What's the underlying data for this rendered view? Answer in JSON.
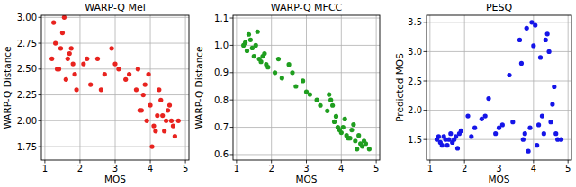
{
  "chart_data": [
    {
      "type": "scatter",
      "title": "WARP-Q Mel",
      "x_label": "MOS",
      "y_label": "WARP-Q Distance",
      "color": "#e8231f",
      "grid": true,
      "xlim": [
        0.9,
        5.1
      ],
      "xticks": [
        1,
        2,
        3,
        4,
        5
      ],
      "ylim": [
        1.62,
        3.02
      ],
      "yticks": [
        {
          "value": 1.75,
          "label": "1.75"
        },
        {
          "value": 2,
          "label": "2.00"
        },
        {
          "value": 2.25,
          "label": "2.25"
        },
        {
          "value": 2.5,
          "label": "2.50"
        },
        {
          "value": 2.75,
          "label": "2.75"
        },
        {
          "value": 3,
          "label": "3.00"
        }
      ],
      "x": [
        1.2,
        1.3,
        1.4,
        1.5,
        1.6,
        1.7,
        1.8,
        1.9,
        1.25,
        1.45,
        1.65,
        1.85,
        1.35,
        1.55,
        1.75,
        2.1,
        2.3,
        2.5,
        2.7,
        2.9,
        3.1,
        3.3,
        2.2,
        2.6,
        3.0,
        3.4,
        3.6,
        3.7,
        3.8,
        3.9,
        4.0,
        4.1,
        4.2,
        4.3,
        4.4,
        4.5,
        4.6,
        4.7,
        3.65,
        3.85,
        4.05,
        4.25,
        4.45,
        4.65,
        3.75,
        3.95,
        4.15,
        4.35,
        4.55,
        4.8
      ],
      "values": [
        2.6,
        2.75,
        2.5,
        2.85,
        2.4,
        2.65,
        2.55,
        2.3,
        2.95,
        2.7,
        2.6,
        2.45,
        2.5,
        3.0,
        2.7,
        2.55,
        2.35,
        2.6,
        2.45,
        2.7,
        2.5,
        2.4,
        2.6,
        2.3,
        2.55,
        2.45,
        2.3,
        2.1,
        2.25,
        2.0,
        2.15,
        1.95,
        2.05,
        2.2,
        1.9,
        2.1,
        2.0,
        1.85,
        2.5,
        2.35,
        1.75,
        2.3,
        2.0,
        1.95,
        2.1,
        2.45,
        1.9,
        2.05,
        2.15,
        2.0
      ]
    },
    {
      "type": "scatter",
      "title": "WARP-Q MFCC",
      "x_label": "MOS",
      "y_label": "WARP-Q Distance",
      "color": "#1f9e1f",
      "grid": true,
      "xlim": [
        0.9,
        5.1
      ],
      "xticks": [
        1,
        2,
        3,
        4,
        5
      ],
      "ylim": [
        0.58,
        1.11
      ],
      "yticks": [
        0.6,
        0.7,
        0.8,
        0.9,
        {
          "value": 1,
          "label": "1.0"
        },
        1.1
      ],
      "x": [
        1.2,
        1.3,
        1.4,
        1.5,
        1.6,
        1.7,
        1.8,
        1.9,
        1.25,
        1.45,
        1.65,
        1.85,
        1.35,
        1.55,
        1.75,
        2.1,
        2.3,
        2.5,
        2.7,
        2.9,
        3.1,
        3.3,
        2.2,
        2.6,
        3.0,
        3.4,
        3.6,
        3.7,
        3.8,
        3.9,
        4.0,
        4.1,
        4.2,
        4.3,
        4.4,
        4.5,
        4.6,
        4.7,
        3.65,
        3.85,
        4.05,
        4.25,
        4.45,
        4.65,
        3.75,
        3.95,
        4.15,
        4.35,
        4.55,
        4.8
      ],
      "values": [
        1.0,
        0.98,
        1.02,
        0.96,
        1.05,
        0.94,
        0.97,
        0.92,
        1.01,
        0.99,
        0.95,
        0.93,
        1.04,
        1.0,
        0.96,
        0.9,
        0.88,
        0.93,
        0.85,
        0.87,
        0.82,
        0.8,
        0.95,
        0.9,
        0.83,
        0.78,
        0.76,
        0.8,
        0.72,
        0.7,
        0.68,
        0.73,
        0.66,
        0.69,
        0.65,
        0.67,
        0.63,
        0.64,
        0.82,
        0.74,
        0.7,
        0.66,
        0.62,
        0.65,
        0.78,
        0.69,
        0.67,
        0.71,
        0.64,
        0.62
      ]
    },
    {
      "type": "scatter",
      "title": "PESQ",
      "x_label": "MOS",
      "y_label": "Predicted MOS",
      "color": "#1515e8",
      "grid": true,
      "xlim": [
        0.9,
        5.1
      ],
      "xticks": [
        1,
        2,
        3,
        4,
        5
      ],
      "ylim": [
        1.15,
        3.62
      ],
      "yticks": [
        1.5,
        {
          "value": 2,
          "label": "2.0"
        },
        2.5,
        {
          "value": 3,
          "label": "3.0"
        },
        3.5
      ],
      "x": [
        1.2,
        1.3,
        1.4,
        1.5,
        1.6,
        1.7,
        1.8,
        1.9,
        1.25,
        1.45,
        1.65,
        1.85,
        1.35,
        1.55,
        1.75,
        2.1,
        2.3,
        2.5,
        2.7,
        2.9,
        3.1,
        3.3,
        2.2,
        2.6,
        3.0,
        3.4,
        3.6,
        3.7,
        3.8,
        3.9,
        4.0,
        4.1,
        4.2,
        4.3,
        4.4,
        4.5,
        4.6,
        4.7,
        3.65,
        3.85,
        4.05,
        4.25,
        4.45,
        4.65,
        3.75,
        3.95,
        4.15,
        4.35,
        4.55,
        4.8
      ],
      "values": [
        1.5,
        1.45,
        1.55,
        1.4,
        1.6,
        1.5,
        1.35,
        1.65,
        1.55,
        1.5,
        1.45,
        1.6,
        1.4,
        1.5,
        1.55,
        1.9,
        1.7,
        1.85,
        2.2,
        1.6,
        1.75,
        2.6,
        1.55,
        1.9,
        1.7,
        1.8,
        3.2,
        1.5,
        3.4,
        1.7,
        3.1,
        1.4,
        2.9,
        1.6,
        3.3,
        1.8,
        2.4,
        1.5,
        2.8,
        1.3,
        3.45,
        1.9,
        3.0,
        1.6,
        1.6,
        3.5,
        1.75,
        3.2,
        2.1,
        1.5
      ]
    }
  ]
}
